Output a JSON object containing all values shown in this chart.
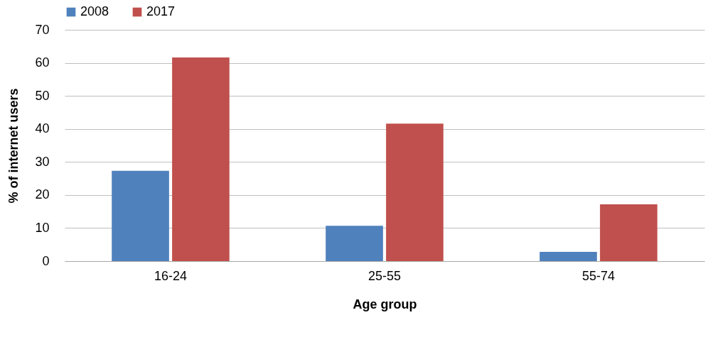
{
  "chart_data": {
    "type": "bar",
    "xlabel": "Age group",
    "ylabel": "% of internet users",
    "categories": [
      "16-24",
      "25-55",
      "55-74"
    ],
    "series": [
      {
        "name": "2008",
        "color": "#4f81bd",
        "values": [
          27.3,
          10.7,
          2.8
        ]
      },
      {
        "name": "2017",
        "color": "#c0504d",
        "values": [
          61.6,
          41.6,
          17.2
        ]
      }
    ],
    "ylim": [
      0,
      70
    ],
    "yticks": [
      0,
      10,
      20,
      30,
      40,
      50,
      60,
      70
    ],
    "grid": "y",
    "legend": "top"
  }
}
